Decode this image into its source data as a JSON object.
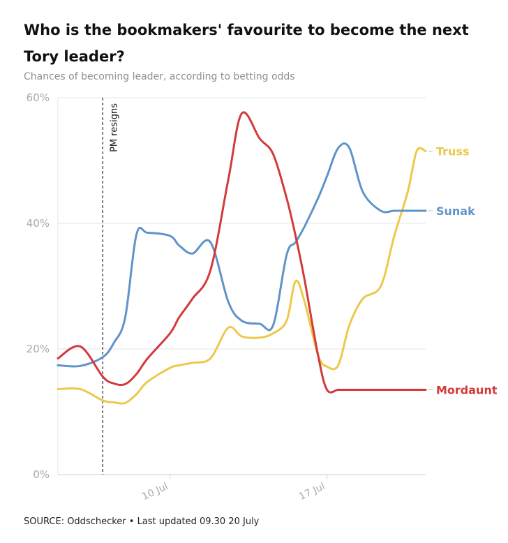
{
  "chart_data": {
    "type": "line",
    "title": "Who is the bookmakers' favourite to become the next Tory leader?",
    "subtitle": "Chances of becoming leader, according to betting odds",
    "source": "SOURCE: Oddschecker • Last updated 09.30 20 July",
    "ylim": [
      0,
      60
    ],
    "yticks": [
      {
        "value": 0,
        "label": "0%"
      },
      {
        "value": 20,
        "label": "20%"
      },
      {
        "value": 40,
        "label": "40%"
      },
      {
        "value": 60,
        "label": "60%"
      }
    ],
    "xlim": [
      4.0,
      20.4
    ],
    "xticks": [
      {
        "value": 9.0,
        "label": "10 Jul"
      },
      {
        "value": 16.0,
        "label": "17 Jul"
      }
    ],
    "grid": true,
    "annotation": {
      "x": 6.0,
      "label": "PM resigns"
    },
    "x": [
      4.0,
      5.0,
      6.0,
      6.5,
      7.0,
      7.5,
      8.0,
      9.0,
      9.4,
      10.0,
      10.8,
      11.6,
      12.2,
      13.0,
      13.6,
      14.2,
      14.6,
      15.0,
      15.6,
      16.0,
      16.5,
      17.0,
      17.6,
      18.4,
      19.0,
      19.6,
      20.0,
      20.4
    ],
    "series": [
      {
        "name": "Truss",
        "color": "#ecc94b",
        "values": [
          13.6,
          13.6,
          11.8,
          11.5,
          11.4,
          12.8,
          14.8,
          17.0,
          17.4,
          17.8,
          18.5,
          23.4,
          22.0,
          21.8,
          22.5,
          24.5,
          30.8,
          27.5,
          19.0,
          17.2,
          17.4,
          23.8,
          28.0,
          30.0,
          38.0,
          45.0,
          51.5,
          51.5
        ]
      },
      {
        "name": "Sunak",
        "color": "#5f93c9",
        "values": [
          17.4,
          17.3,
          18.7,
          21.0,
          25.0,
          38.2,
          38.5,
          38.0,
          36.5,
          35.2,
          37.0,
          27.5,
          24.5,
          24.0,
          23.8,
          35.0,
          37.0,
          39.5,
          44.0,
          47.5,
          52.0,
          52.0,
          45.0,
          42.0,
          42.0,
          42.0,
          42.0,
          42.0
        ]
      },
      {
        "name": "Mordaunt",
        "color": "#d4393b",
        "values": [
          18.5,
          20.4,
          15.6,
          14.5,
          14.4,
          16.0,
          18.5,
          22.5,
          25.0,
          28.0,
          32.5,
          47.0,
          57.5,
          53.5,
          51.0,
          44.0,
          38.0,
          31.0,
          19.0,
          13.5,
          13.5,
          13.5,
          13.5,
          13.5,
          13.5,
          13.5,
          13.5,
          13.5
        ]
      }
    ],
    "end_labels": [
      {
        "name": "Truss",
        "value": 51.5
      },
      {
        "name": "Sunak",
        "value": 42.0
      },
      {
        "name": "Mordaunt",
        "value": 13.5
      }
    ]
  }
}
